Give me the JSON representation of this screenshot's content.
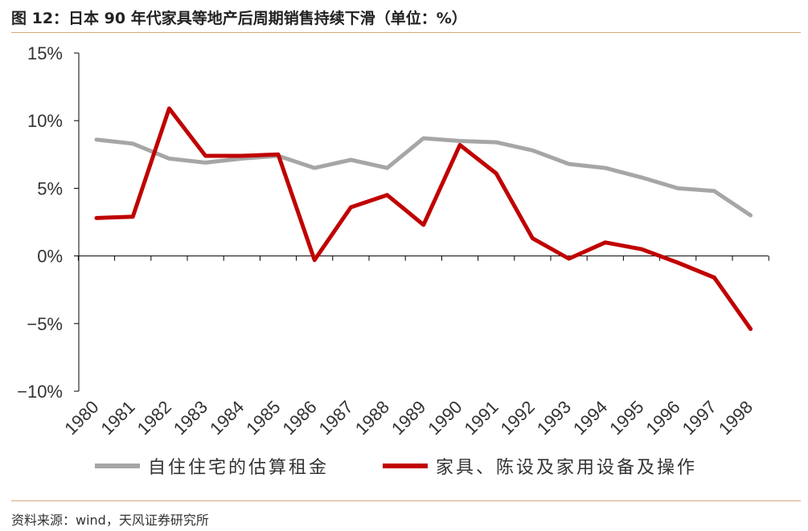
{
  "title": "图 12：日本 90 年代家具等地产后周期销售持续下滑（单位：%）",
  "source": "资料来源：wind，天风证券研究所",
  "colors": {
    "rent": "#a6a6a6",
    "furniture": "#c00000",
    "rule": "#d9a679",
    "axis": "#000000"
  },
  "chart_data": {
    "type": "line",
    "ylim": [
      -10,
      15
    ],
    "ytick_values": [
      -10,
      -5,
      0,
      5,
      10,
      15
    ],
    "ytick_labels": [
      "−10%",
      "−5%",
      "0%",
      "5%",
      "10%",
      "15%"
    ],
    "x": [
      "1980",
      "1981",
      "1982",
      "1983",
      "1984",
      "1985",
      "1986",
      "1987",
      "1988",
      "1989",
      "1990",
      "1991",
      "1992",
      "1993",
      "1994",
      "1995",
      "1996",
      "1997",
      "1998"
    ],
    "series": [
      {
        "name": "自住住宅的估算租金",
        "color": "#a6a6a6",
        "values": [
          8.6,
          8.3,
          7.2,
          6.9,
          7.2,
          7.4,
          6.5,
          7.1,
          6.5,
          8.7,
          8.5,
          8.4,
          7.8,
          6.8,
          6.5,
          5.8,
          5.0,
          4.8,
          3.0
        ]
      },
      {
        "name": "家具、陈设及家用设备及操作",
        "color": "#c00000",
        "values": [
          2.8,
          2.9,
          10.9,
          7.4,
          7.4,
          7.5,
          -0.3,
          3.6,
          4.5,
          2.3,
          8.2,
          6.1,
          1.3,
          -0.2,
          1.0,
          0.5,
          -0.5,
          -1.6,
          -5.4
        ]
      }
    ]
  }
}
